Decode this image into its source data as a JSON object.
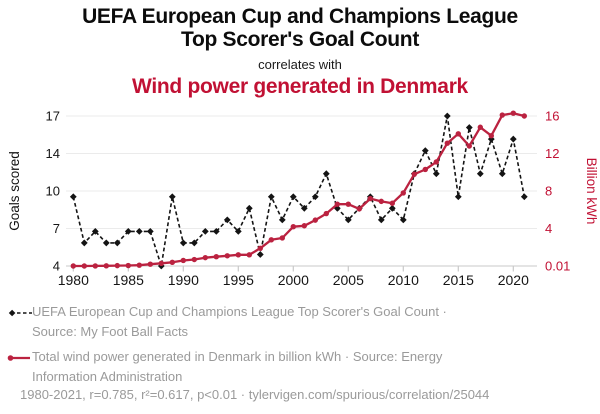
{
  "header": {
    "title_line1": "UEFA European Cup and Champions League",
    "title_line2": "Top Scorer's Goal Count",
    "connector": "correlates with",
    "subtitle": "Wind power generated in Denmark"
  },
  "colors": {
    "title_text": "#0c0c0c",
    "accent_red": "#c11134",
    "series_goals": "#141414",
    "series_wind": "#bb2240",
    "grid": "#ebebeb",
    "axis": "#c9c9c9",
    "tick_text": "#151515",
    "legend_text": "#9a9a9a"
  },
  "chart_data": {
    "type": "line",
    "title": "UEFA European Cup and Champions League Top Scorer's Goal Count correlates with Wind power generated in Denmark",
    "x": [
      1980,
      1981,
      1982,
      1983,
      1984,
      1985,
      1986,
      1987,
      1988,
      1989,
      1990,
      1991,
      1992,
      1993,
      1994,
      1995,
      1996,
      1997,
      1998,
      1999,
      2000,
      2001,
      2002,
      2003,
      2004,
      2005,
      2006,
      2007,
      2008,
      2009,
      2010,
      2011,
      2012,
      2013,
      2014,
      2015,
      2016,
      2017,
      2018,
      2019,
      2020,
      2021
    ],
    "series": [
      {
        "name": "UEFA European Cup and Champions League Top Scorer's Goal Count",
        "axis": "left",
        "style": "dashed-diamond",
        "values": [
          10,
          6,
          7,
          6,
          6,
          7,
          7,
          7,
          4,
          10,
          6,
          6,
          7,
          7,
          8,
          7,
          9,
          5,
          10,
          8,
          10,
          9,
          10,
          12,
          9,
          8,
          9,
          10,
          8,
          9,
          8,
          12,
          14,
          12,
          17,
          10,
          16,
          12,
          15,
          12,
          15,
          10
        ]
      },
      {
        "name": "Total wind power generated in Denmark in billion kWh",
        "axis": "right",
        "style": "solid-circle",
        "values": [
          0.01,
          0.01,
          0.02,
          0.03,
          0.05,
          0.06,
          0.1,
          0.2,
          0.3,
          0.4,
          0.6,
          0.7,
          0.9,
          1.0,
          1.1,
          1.2,
          1.2,
          1.9,
          2.8,
          3.0,
          4.2,
          4.3,
          4.9,
          5.6,
          6.6,
          6.6,
          6.1,
          7.2,
          6.9,
          6.7,
          7.8,
          9.8,
          10.3,
          11.1,
          13.1,
          14.1,
          12.8,
          14.8,
          13.9,
          16.1,
          16.3,
          16.0
        ]
      }
    ],
    "left_axis": {
      "label": "Goals scored",
      "min": 4,
      "max": 17,
      "tick_labels": [
        "4",
        "7",
        "10",
        "14",
        "17"
      ]
    },
    "right_axis": {
      "label": "Billion kWh",
      "min": 0.01,
      "max": 16,
      "tick_labels": [
        "0.01",
        "4",
        "8",
        "12",
        "16"
      ]
    },
    "x_axis": {
      "ticks": [
        1980,
        1985,
        1990,
        1995,
        2000,
        2005,
        2010,
        2015,
        2020
      ],
      "tick_labels": [
        "1980",
        "1985",
        "1990",
        "1995",
        "2000",
        "2005",
        "2010",
        "2015",
        "2020"
      ]
    },
    "grid": true,
    "legend_position": "bottom",
    "x_range": [
      1980,
      2021
    ]
  },
  "legend": {
    "items": [
      {
        "label": "UEFA European Cup and Champions League Top Scorer's Goal Count · Source: My Foot Ball Facts",
        "marker": "black-dashed-diamond"
      },
      {
        "label": "Total wind power generated in Denmark in billion kWh · Source: Energy Information Administration",
        "marker": "red-solid-circle"
      }
    ]
  },
  "footer": {
    "stats": "1980-2021, r=0.785, r²=0.617, p<0.01 · tylervigen.com/spurious/correlation/25044"
  }
}
